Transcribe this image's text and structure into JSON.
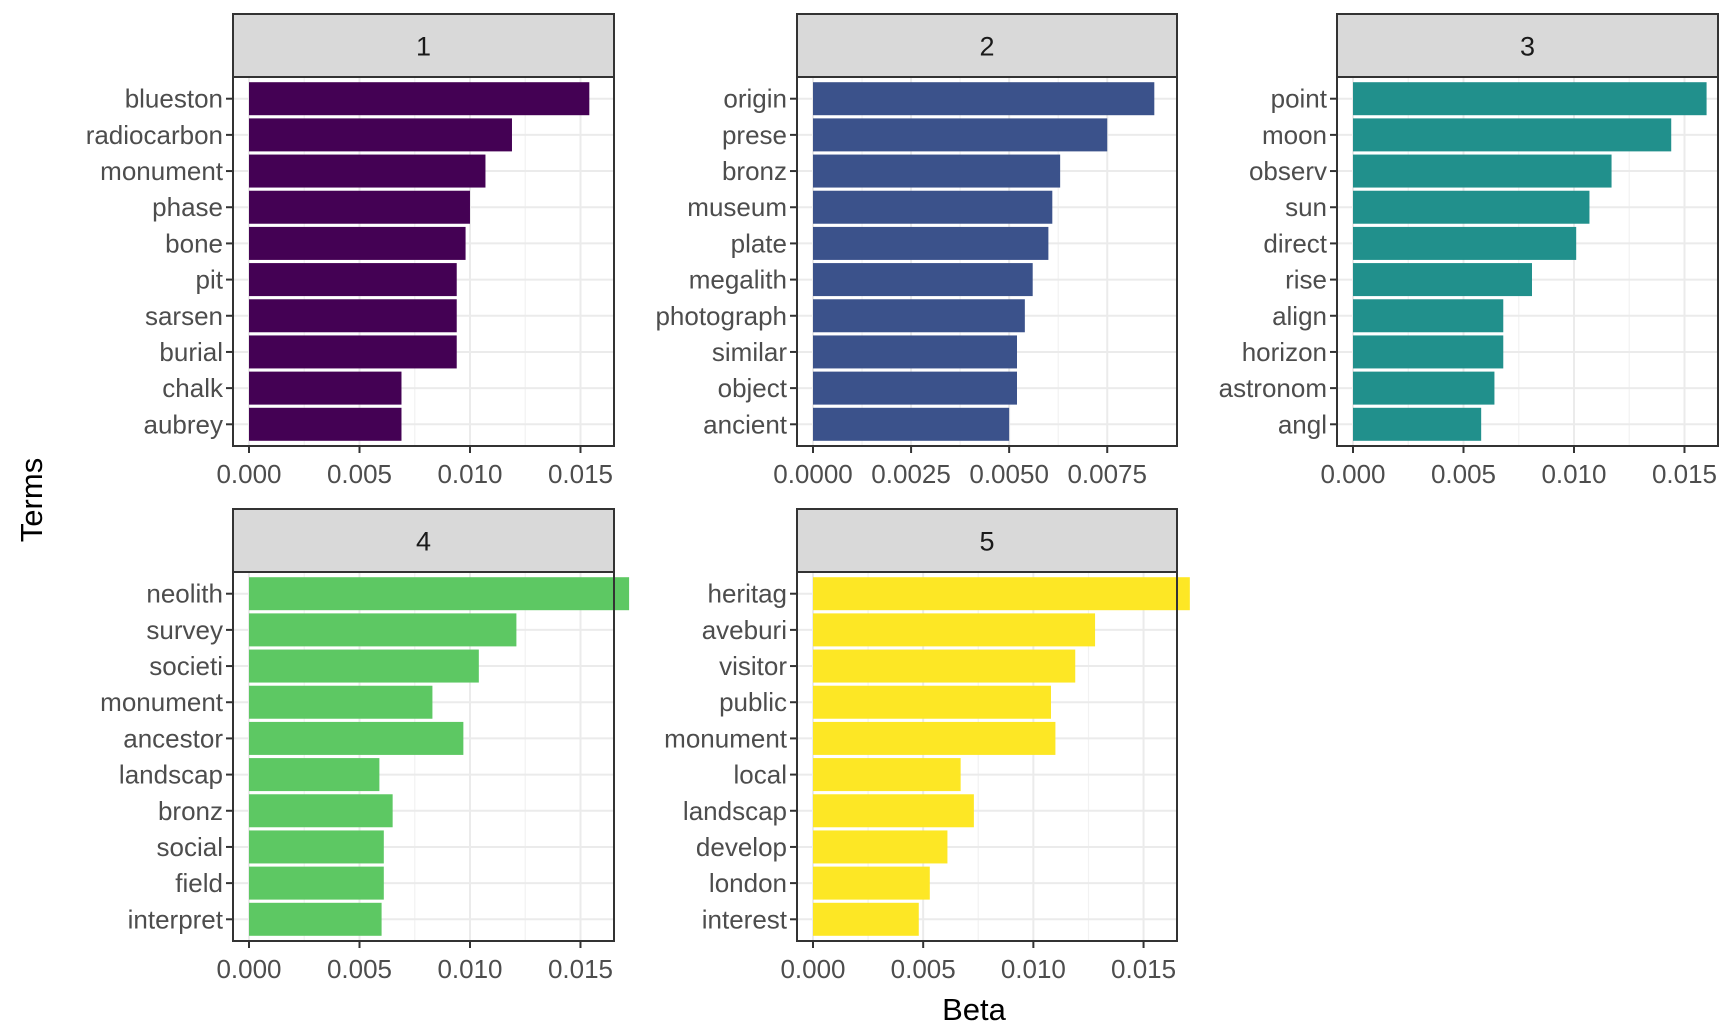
{
  "chart_data": {
    "type": "bar",
    "orientation": "horizontal",
    "facet_layout": "3 columns x 2 rows",
    "xlabel": "Beta",
    "ylabel": "Terms",
    "grid": true,
    "legend": "none",
    "strip_fill": "#d9d9d9",
    "panels": [
      {
        "title": "1",
        "color": "#440154",
        "xlim": [
          0,
          0.0162
        ],
        "xticks": [
          0,
          0.005,
          0.01,
          0.015
        ],
        "xtick_labels": [
          "0.000",
          "0.005",
          "0.010",
          "0.015"
        ],
        "categories": [
          "blueston",
          "radiocarbon",
          "monument",
          "phase",
          "bone",
          "pit",
          "sarsen",
          "burial",
          "chalk",
          "aubrey"
        ],
        "values": [
          0.0154,
          0.0119,
          0.0107,
          0.01,
          0.0098,
          0.0094,
          0.0094,
          0.0094,
          0.0069,
          0.0069
        ]
      },
      {
        "title": "2",
        "color": "#3B528B",
        "xlim": [
          0,
          0.0091
        ],
        "xticks": [
          0,
          0.0025,
          0.005,
          0.0075
        ],
        "xtick_labels": [
          "0.0000",
          "0.0025",
          "0.0050",
          "0.0075"
        ],
        "categories": [
          "origin",
          "prese",
          "bronz",
          "museum",
          "plate",
          "megalith",
          "photograph",
          "similar",
          "object",
          "ancient"
        ],
        "values": [
          0.0087,
          0.0075,
          0.0063,
          0.0061,
          0.006,
          0.0056,
          0.0054,
          0.0052,
          0.0052,
          0.005
        ]
      },
      {
        "title": "3",
        "color": "#21908C",
        "xlim": [
          0,
          0.0162
        ],
        "xticks": [
          0,
          0.005,
          0.01,
          0.015
        ],
        "xtick_labels": [
          "0.000",
          "0.005",
          "0.010",
          "0.015"
        ],
        "categories": [
          "point",
          "moon",
          "observ",
          "sun",
          "direct",
          "rise",
          "align",
          "horizon",
          "astronom",
          "angl"
        ],
        "values": [
          0.016,
          0.0144,
          0.0117,
          0.0107,
          0.0101,
          0.0081,
          0.0068,
          0.0068,
          0.0064,
          0.0058
        ]
      },
      {
        "title": "4",
        "color": "#5DC863",
        "xlim": [
          0,
          0.0162
        ],
        "xticks": [
          0,
          0.005,
          0.01,
          0.015
        ],
        "xtick_labels": [
          "0.000",
          "0.005",
          "0.010",
          "0.015"
        ],
        "categories": [
          "neolith",
          "survey",
          "societi",
          "monument",
          "ancestor",
          "landscap",
          "bronz",
          "social",
          "field",
          "interpret"
        ],
        "values": [
          0.0172,
          0.0121,
          0.0104,
          0.0083,
          0.0097,
          0.0059,
          0.0065,
          0.0061,
          0.0061,
          0.006
        ]
      },
      {
        "title": "5",
        "color": "#FDE725",
        "xlim": [
          0,
          0.0162
        ],
        "xticks": [
          0,
          0.005,
          0.01,
          0.015
        ],
        "xtick_labels": [
          "0.000",
          "0.005",
          "0.010",
          "0.015"
        ],
        "categories": [
          "heritag",
          "aveburi",
          "visitor",
          "public",
          "monument",
          "local",
          "landscap",
          "develop",
          "london",
          "interest"
        ],
        "values": [
          0.0171,
          0.0128,
          0.0119,
          0.0108,
          0.011,
          0.0067,
          0.0073,
          0.0061,
          0.0053,
          0.0048
        ]
      }
    ]
  }
}
